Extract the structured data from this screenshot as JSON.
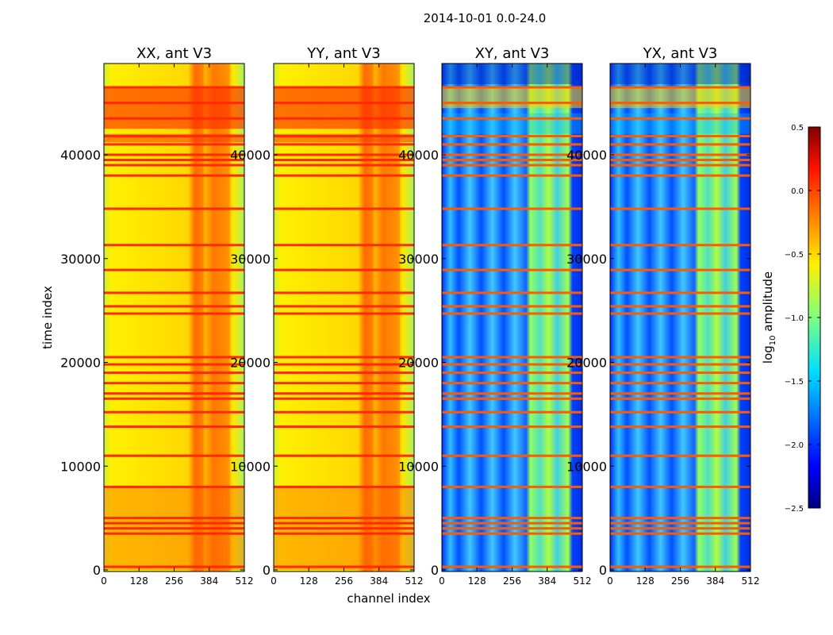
{
  "chart_data": {
    "type": "heatmap",
    "title": "2014-10-01 0.0-24.0",
    "xlabel": "channel index",
    "ylabel": "time index",
    "xlim": [
      0,
      512
    ],
    "ylim": [
      0,
      49000
    ],
    "xticks": [
      "0",
      "128",
      "256",
      "384",
      "512"
    ],
    "xtick_values": [
      0,
      128,
      256,
      384,
      512
    ],
    "yticks": [
      "0",
      "10000",
      "20000",
      "30000",
      "40000"
    ],
    "ytick_values": [
      0,
      10000,
      20000,
      30000,
      40000
    ],
    "panels": [
      {
        "title": "XX, ant V3",
        "kind": "auto"
      },
      {
        "title": "YY, ant V3",
        "kind": "auto"
      },
      {
        "title": "XY, ant V3",
        "kind": "cross"
      },
      {
        "title": "YX, ant V3",
        "kind": "cross"
      }
    ],
    "flagged_time_rows": [
      300,
      3500,
      4000,
      4500,
      5000,
      8000,
      11000,
      13800,
      15200,
      16500,
      17000,
      18000,
      19000,
      19800,
      20500,
      24700,
      25400,
      26700,
      28900,
      31300,
      34800,
      38000,
      39000,
      39500,
      40000,
      41000,
      41800,
      43500,
      45000,
      46500
    ],
    "colorbar": {
      "label": "log10 amplitude",
      "label_main": "log",
      "label_sub": "10",
      "label_rest": " amplitude",
      "colormap": "jet",
      "range": [
        -2.5,
        0.5
      ],
      "ticks": [
        "0.5",
        "0.0",
        "−0.5",
        "−1.0",
        "−1.5",
        "−2.0",
        "−2.5"
      ],
      "tick_values": [
        0.5,
        0.0,
        -0.5,
        -1.0,
        -1.5,
        -2.0,
        -2.5
      ]
    }
  }
}
